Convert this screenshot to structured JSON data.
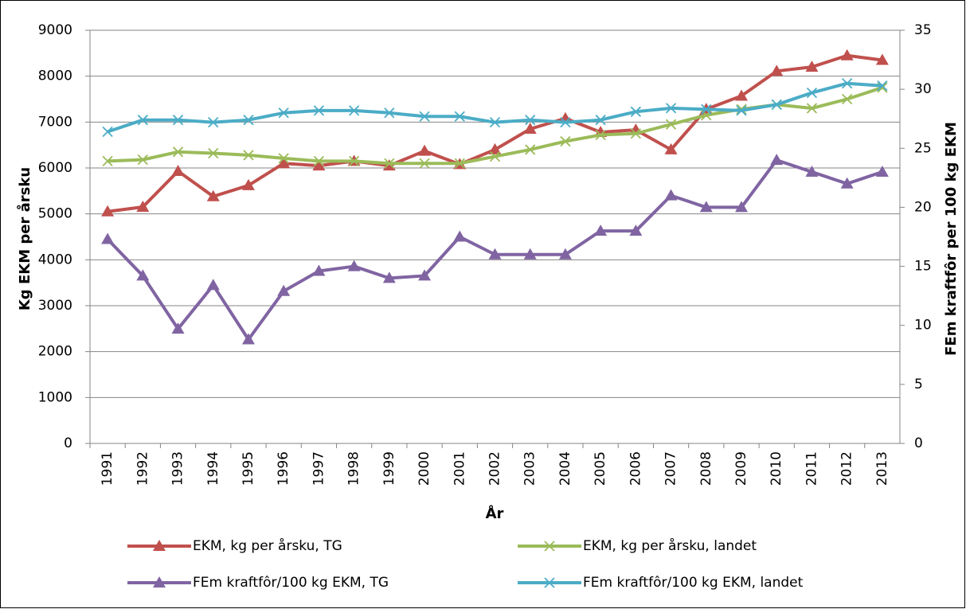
{
  "chart_data": {
    "type": "line",
    "x_label": "År",
    "y_label": "Kg EKM per årsku",
    "y2_label": "FEm kraftfôr per 100 kg EKM",
    "categories": [
      "1991",
      "1992",
      "1993",
      "1994",
      "1995",
      "1996",
      "1997",
      "1998",
      "1999",
      "2000",
      "2001",
      "2002",
      "2003",
      "2004",
      "2005",
      "2006",
      "2007",
      "2008",
      "2009",
      "2010",
      "2011",
      "2012",
      "2013"
    ],
    "ylim": [
      0,
      9000
    ],
    "yticks": [
      0,
      1000,
      2000,
      3000,
      4000,
      5000,
      6000,
      7000,
      8000,
      9000
    ],
    "y2lim": [
      0,
      35
    ],
    "y2ticks": [
      0,
      5,
      10,
      15,
      20,
      25,
      30,
      35
    ],
    "grid": true,
    "series": [
      {
        "name": "EKM, kg per årsku, TG",
        "color": "#c0504d",
        "marker": "triangle",
        "values": [
          5050,
          5150,
          5930,
          5380,
          5620,
          6100,
          6050,
          6150,
          6050,
          6370,
          6080,
          6400,
          6850,
          7080,
          6780,
          6830,
          6400,
          7280,
          7570,
          8110,
          8200,
          8450,
          8350
        ]
      },
      {
        "name": "EKM, kg per årsku, landet",
        "color": "#9bbb59",
        "marker": "x",
        "values": [
          6150,
          6180,
          6350,
          6320,
          6280,
          6210,
          6150,
          6150,
          6100,
          6100,
          6100,
          6250,
          6400,
          6580,
          6720,
          6750,
          6950,
          7150,
          7280,
          7380,
          7300,
          7500,
          7750
        ]
      },
      {
        "name": "FEm kraftfôr/100 kg EKM, TG",
        "color": "#8064a2",
        "marker": "triangle",
        "axis": "y2",
        "values": [
          17.3,
          14.2,
          9.7,
          13.4,
          8.8,
          12.9,
          14.6,
          15.0,
          14.0,
          14.2,
          17.5,
          16,
          16,
          16,
          18,
          18,
          21,
          20,
          20,
          24,
          23,
          22,
          23
        ]
      },
      {
        "name": "FEm kraftfôr/100 kg EKM, landet",
        "color": "#4bacc6",
        "marker": "x",
        "axis": "y2",
        "values": [
          26.4,
          27.4,
          27.4,
          27.2,
          27.4,
          28,
          28.2,
          28.2,
          28,
          27.7,
          27.7,
          27.2,
          27.4,
          27.2,
          27.4,
          28.1,
          28.4,
          28.3,
          28.2,
          28.7,
          29.7,
          30.5,
          30.3
        ]
      }
    ]
  }
}
